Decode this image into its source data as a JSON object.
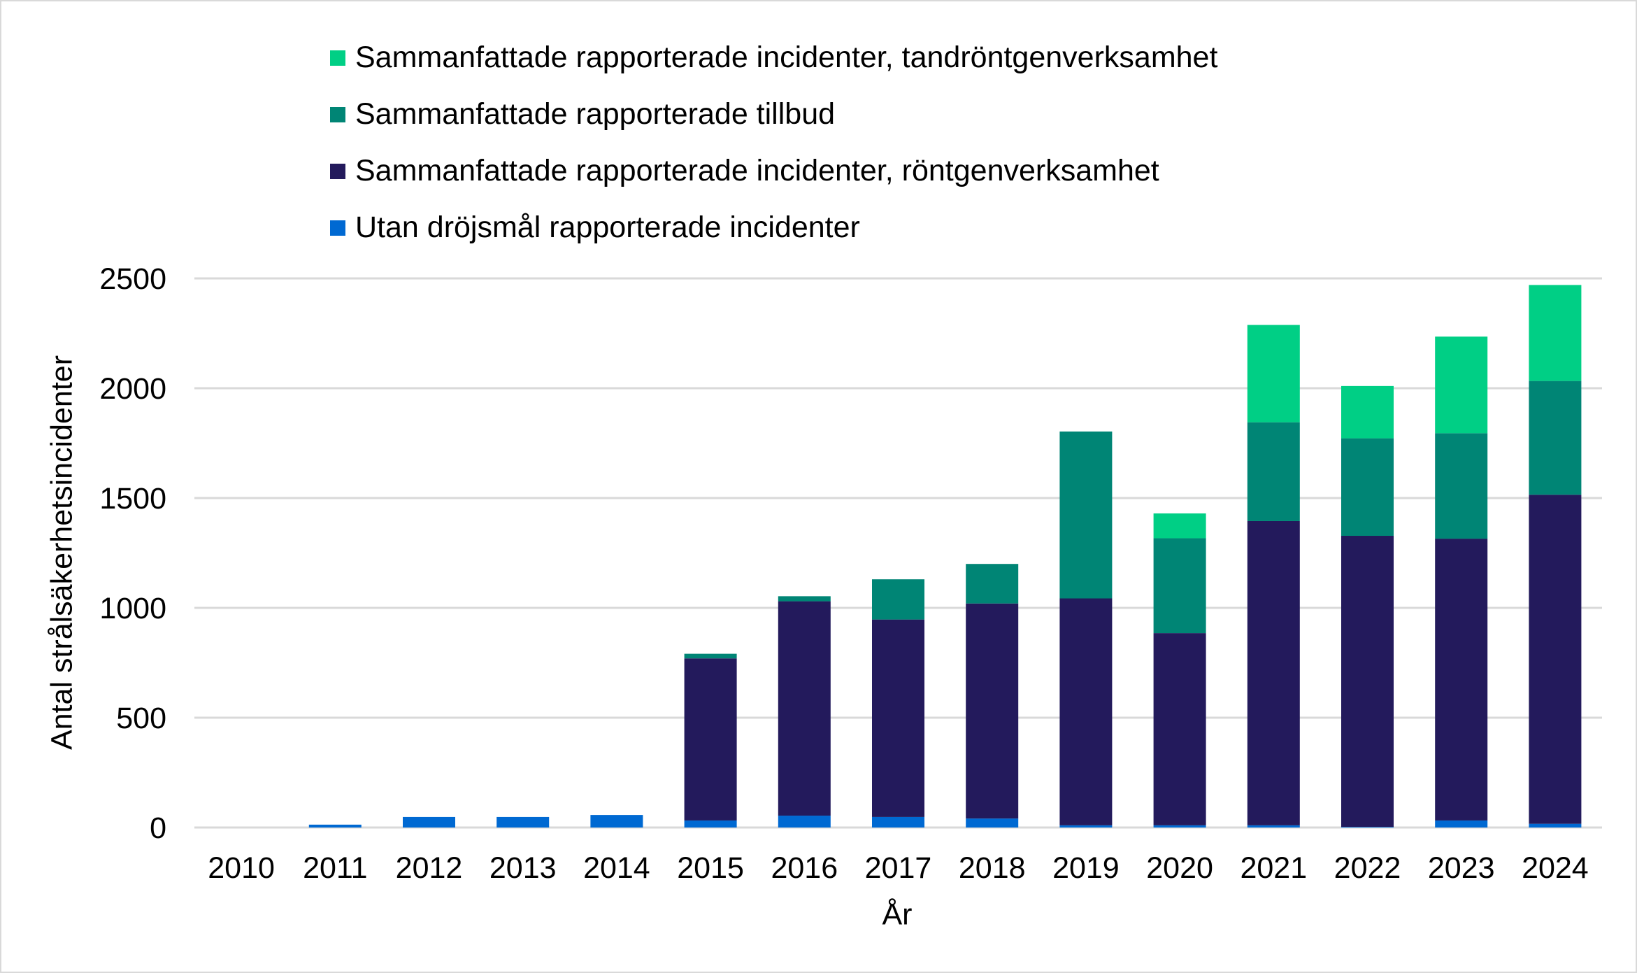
{
  "chart_data": {
    "type": "bar",
    "stacked": true,
    "xlabel": "År",
    "ylabel": "Antal strålsäkerhetsincidenter",
    "ylim": [
      0,
      2500
    ],
    "yticks": [
      0,
      500,
      1000,
      1500,
      2000,
      2500
    ],
    "grid": true,
    "legend_position": "top",
    "categories": [
      "2010",
      "2011",
      "2012",
      "2013",
      "2014",
      "2015",
      "2016",
      "2017",
      "2018",
      "2019",
      "2020",
      "2021",
      "2022",
      "2023",
      "2024"
    ],
    "series": [
      {
        "name": "Utan dröjsmål rapporterade incidenter",
        "color": "#0069d2",
        "values": [
          0,
          13,
          48,
          48,
          57,
          32,
          54,
          48,
          41,
          10,
          10,
          10,
          3,
          32,
          17
        ]
      },
      {
        "name": "Sammanfattade rapporterade incidenter, röntgenverksamhet",
        "color": "#231a5c",
        "values": [
          0,
          0,
          0,
          0,
          0,
          738,
          976,
          899,
          979,
          1033,
          875,
          1385,
          1325,
          1283,
          1498
        ]
      },
      {
        "name": "Sammanfattade rapporterade tillbud",
        "color": "#008575",
        "values": [
          0,
          0,
          0,
          0,
          0,
          21,
          23,
          183,
          180,
          760,
          432,
          450,
          444,
          480,
          518
        ]
      },
      {
        "name": "Sammanfattade rapporterade incidenter, tandröntgenverksamhet",
        "color": "#00cf85",
        "values": [
          0,
          0,
          0,
          0,
          0,
          0,
          0,
          0,
          0,
          0,
          113,
          443,
          238,
          440,
          437
        ]
      }
    ]
  }
}
